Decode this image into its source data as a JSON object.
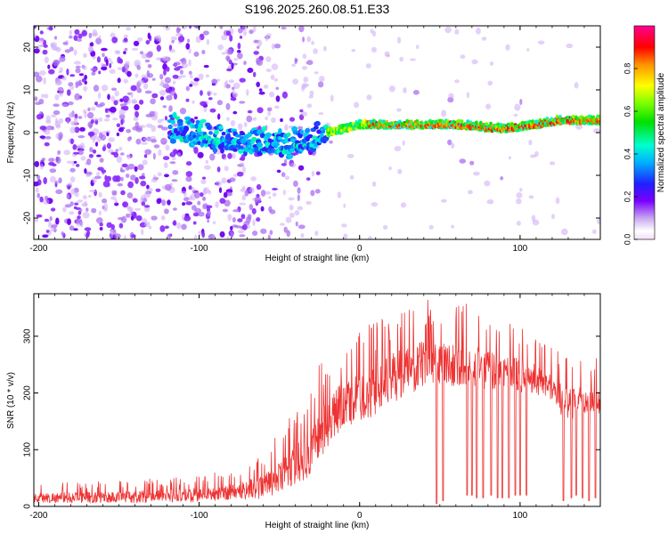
{
  "title": "S196.2025.260.08.51.E33",
  "chart_data": [
    {
      "type": "heatmap",
      "name": "spectrogram",
      "xlabel": "Height of straight line (km)",
      "ylabel": "Frequency (Hz)",
      "xlim": [
        -203,
        150
      ],
      "ylim": [
        -25,
        25
      ],
      "xticks": [
        -200,
        -100,
        0,
        100
      ],
      "yticks": [
        -20,
        -10,
        0,
        10,
        20
      ],
      "colorbar": {
        "label": "Normalized spectral amplitude",
        "range": [
          0,
          1
        ],
        "ticks": [
          "0.0",
          "0.2",
          "0.4",
          "0.6",
          "0.8"
        ],
        "tick_values": [
          0.0,
          0.2,
          0.4,
          0.6,
          0.8
        ],
        "colormap": "rainbow-magenta-to-red"
      },
      "features": {
        "noise_region_x": [
          -203,
          -25
        ],
        "noise_density_decreases_toward": 0,
        "ridge": {
          "description": "narrow band of high amplitude near 2 Hz",
          "points": [
            [
              -115,
              1
            ],
            [
              -90,
              -1
            ],
            [
              -60,
              -2
            ],
            [
              -45,
              -3
            ],
            [
              -30,
              -1
            ],
            [
              -20,
              0
            ],
            [
              -10,
              1
            ],
            [
              0,
              2
            ],
            [
              20,
              2
            ],
            [
              60,
              2
            ],
            [
              90,
              1
            ],
            [
              110,
              2
            ],
            [
              125,
              3
            ],
            [
              150,
              3
            ]
          ]
        }
      }
    },
    {
      "type": "line",
      "name": "snr",
      "xlabel": "Height of straight line (km)",
      "ylabel": "SNR (10 * v/v)",
      "xlim": [
        -203,
        150
      ],
      "ylim": [
        0,
        375
      ],
      "xticks": [
        -200,
        -100,
        0,
        100
      ],
      "yticks": [
        0,
        100,
        200,
        300
      ],
      "line_color": "#ee3333",
      "envelope": {
        "x": [
          -203,
          -150,
          -100,
          -80,
          -60,
          -50,
          -40,
          -30,
          -20,
          -10,
          0,
          10,
          20,
          30,
          40,
          50,
          60,
          70,
          80,
          90,
          100,
          110,
          120,
          125,
          130,
          140,
          150
        ],
        "mean": [
          15,
          16,
          20,
          25,
          35,
          50,
          70,
          100,
          150,
          180,
          190,
          205,
          225,
          240,
          250,
          255,
          250,
          245,
          240,
          235,
          230,
          225,
          210,
          190,
          180,
          185,
          190
        ],
        "max": [
          40,
          45,
          55,
          65,
          95,
          130,
          170,
          230,
          280,
          300,
          310,
          330,
          350,
          360,
          370,
          365,
          360,
          355,
          340,
          330,
          320,
          300,
          285,
          270,
          260,
          265,
          265
        ]
      },
      "dropouts_x": [
        48,
        52,
        67,
        70,
        73,
        77,
        82,
        86,
        89,
        93,
        97,
        100,
        104,
        127,
        132,
        135,
        139,
        143,
        147
      ],
      "dropouts_min": [
        5,
        10,
        20,
        20,
        15,
        15,
        20,
        15,
        15,
        15,
        20,
        20,
        20,
        10,
        15,
        20,
        15,
        10,
        15
      ]
    }
  ]
}
